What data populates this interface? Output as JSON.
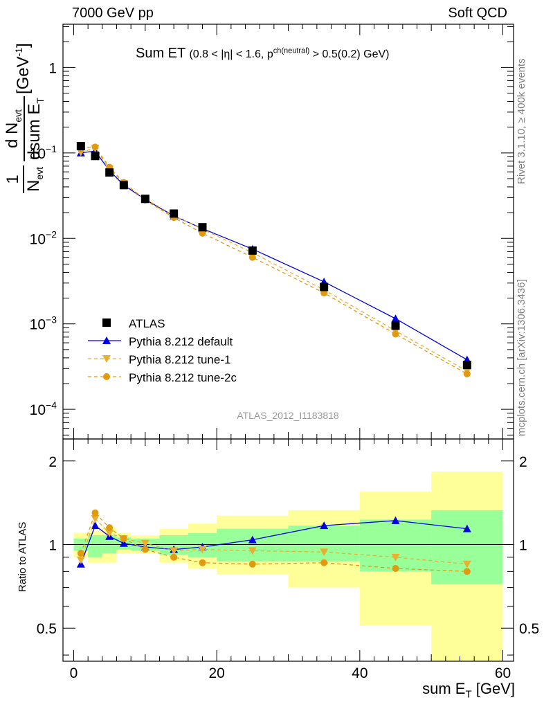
{
  "header": {
    "energy": "7000 GeV pp",
    "process": "Soft QCD"
  },
  "side": {
    "rivet": "Rivet 3.1.10, ≥ 400k events",
    "mcplots": "mcplots.cern.ch [arXiv:1306.3436]"
  },
  "chart_data": {
    "type": "scatter",
    "title": "Sum ET",
    "title_sub": "(0.8 < |η| < 1.6, p",
    "title_sup": "ch(neutral)",
    "title_tail": " > 0.5(0.2) GeV)",
    "analysis_id": "ATLAS_2012_I1183818",
    "ylabel_parts": {
      "one": "1",
      "n_evt": "N",
      "evt": "evt",
      "dn": "d N",
      "dsum": "dsum E",
      "t": "T",
      "unit": "[GeV",
      "unit_exp": "-1",
      "unit_end": "]"
    },
    "xlabel": "sum E",
    "xlabel_sub": "T",
    "xlabel_unit": " [GeV]",
    "ratio_ylabel": "Ratio to ATLAS",
    "x_range": [
      -1.5,
      61.5
    ],
    "y_range_main": [
      4.5e-05,
      3.2
    ],
    "y_scale_main": "log",
    "y_range_ratio": [
      0.38,
      2.4
    ],
    "y_scale_ratio": "log",
    "x_ticks": [
      0,
      20,
      40,
      60
    ],
    "x_tick_labels": [
      "0",
      "20",
      "40",
      "60"
    ],
    "main_y_ticks": [
      1,
      0.1,
      0.01,
      0.001,
      0.0001
    ],
    "main_y_tick_labels": [
      {
        "base": "1",
        "exp": ""
      },
      {
        "base": "10",
        "exp": "−1"
      },
      {
        "base": "10",
        "exp": "−2"
      },
      {
        "base": "10",
        "exp": "−3"
      },
      {
        "base": "10",
        "exp": "−4"
      }
    ],
    "ratio_y_ticks": [
      2,
      1,
      0.5
    ],
    "ratio_y_tick_labels": [
      "2",
      "1",
      "0.5"
    ],
    "legend_position": "lower-left",
    "x": [
      1,
      3,
      5,
      7,
      10,
      14,
      18,
      25,
      35,
      45,
      55
    ],
    "bins": [
      [
        0,
        2
      ],
      [
        2,
        4
      ],
      [
        4,
        6
      ],
      [
        6,
        8
      ],
      [
        8,
        12
      ],
      [
        12,
        16
      ],
      [
        16,
        20
      ],
      [
        20,
        30
      ],
      [
        30,
        40
      ],
      [
        40,
        50
      ],
      [
        50,
        60
      ]
    ],
    "data": {
      "name": "ATLAS",
      "color": "#000000",
      "values": [
        0.12,
        0.092,
        0.059,
        0.042,
        0.029,
        0.0195,
        0.0135,
        0.0072,
        0.0027,
        0.00095,
        0.00033
      ]
    },
    "series": [
      {
        "name": "Pythia 8.212 default",
        "color": "#0000dd",
        "marker": "triangle-up",
        "dash": "solid",
        "values": [
          0.1,
          0.105,
          0.062,
          0.042,
          0.0285,
          0.0183,
          0.013,
          0.0075,
          0.0031,
          0.00115,
          0.00038
        ],
        "ratio": [
          0.85,
          1.17,
          1.07,
          1.01,
          0.98,
          0.96,
          0.98,
          1.04,
          1.17,
          1.22,
          1.14
        ]
      },
      {
        "name": "Pythia 8.212 tune-1",
        "color": "#e8b030",
        "marker": "triangle-down",
        "dash": "dashed",
        "values": [
          0.102,
          0.113,
          0.065,
          0.044,
          0.029,
          0.0185,
          0.0128,
          0.0068,
          0.0025,
          0.00083,
          0.00028
        ],
        "ratio": [
          0.88,
          1.24,
          1.1,
          1.05,
          1.01,
          0.95,
          0.96,
          0.95,
          0.94,
          0.9,
          0.85
        ]
      },
      {
        "name": "Pythia 8.212 tune-2c",
        "color": "#e09a10",
        "marker": "circle",
        "dash": "dashed",
        "values": [
          0.112,
          0.117,
          0.068,
          0.045,
          0.028,
          0.0175,
          0.0115,
          0.006,
          0.0023,
          0.00076,
          0.00026
        ],
        "ratio": [
          0.93,
          1.3,
          1.15,
          1.05,
          0.96,
          0.9,
          0.86,
          0.85,
          0.86,
          0.82,
          0.8
        ]
      }
    ],
    "uncertainty_green": [
      [
        0.95,
        1.05
      ],
      [
        0.9,
        1.08
      ],
      [
        0.93,
        1.08
      ],
      [
        0.96,
        1.06
      ],
      [
        0.95,
        1.05
      ],
      [
        0.92,
        1.08
      ],
      [
        0.9,
        1.1
      ],
      [
        0.87,
        1.14
      ],
      [
        0.87,
        1.17
      ],
      [
        0.8,
        1.23
      ],
      [
        0.72,
        1.33
      ]
    ],
    "uncertainty_yellow": [
      [
        0.9,
        1.1
      ],
      [
        0.86,
        1.12
      ],
      [
        0.86,
        1.15
      ],
      [
        0.93,
        1.1
      ],
      [
        0.93,
        1.08
      ],
      [
        0.86,
        1.14
      ],
      [
        0.82,
        1.19
      ],
      [
        0.78,
        1.27
      ],
      [
        0.7,
        1.33
      ],
      [
        0.51,
        1.55
      ],
      [
        0.37,
        1.83
      ]
    ]
  }
}
